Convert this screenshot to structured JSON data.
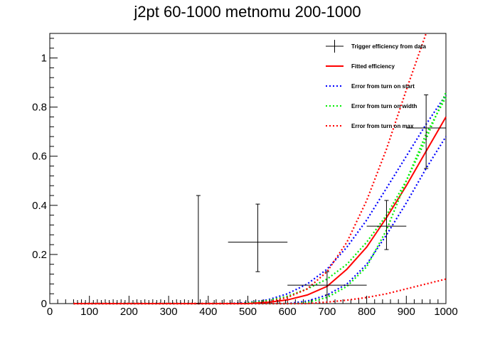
{
  "chart_data": {
    "type": "line",
    "title": "j2pt 60-1000 metnomu 200-1000",
    "xlabel": "",
    "ylabel": "",
    "xlim": [
      0,
      1000
    ],
    "ylim": [
      0,
      1.1
    ],
    "x_ticks": [
      0,
      100,
      200,
      300,
      400,
      500,
      600,
      700,
      800,
      900,
      1000
    ],
    "x_tick_labels": [
      "0",
      "100",
      "200",
      "300",
      "400",
      "500",
      "600",
      "700",
      "800",
      "900",
      "1000"
    ],
    "y_ticks": [
      0,
      0.2,
      0.4,
      0.6,
      0.8,
      1
    ],
    "y_tick_labels": [
      "0",
      "0.2",
      "0.4",
      "0.6",
      "0.8",
      "1"
    ],
    "grid": false,
    "legend_position": "top-right",
    "data_points": [
      {
        "x": 375,
        "y": 0.0,
        "x_err": 0,
        "y_low": 0.0,
        "y_high": 0.44
      },
      {
        "x": 525,
        "y": 0.25,
        "x_err": 75,
        "y_low": 0.13,
        "y_high": 0.405
      },
      {
        "x": 700,
        "y": 0.075,
        "x_err": 100,
        "y_low": 0.035,
        "y_high": 0.13
      },
      {
        "x": 850,
        "y": 0.315,
        "x_err": 50,
        "y_low": 0.22,
        "y_high": 0.42
      },
      {
        "x": 950,
        "y": 0.715,
        "x_err": 50,
        "y_low": 0.55,
        "y_high": 0.85
      }
    ],
    "zero_points_x": [
      70,
      90,
      110,
      130,
      150,
      170,
      190,
      210,
      230,
      250,
      270,
      290,
      310,
      330,
      350,
      395,
      415,
      435,
      455,
      475,
      495,
      515,
      535,
      555,
      575,
      595
    ],
    "series": [
      {
        "name": "Fitted efficiency",
        "color": "#ff0000",
        "style": "solid",
        "x": [
          60,
          500,
          550,
          600,
          650,
          700,
          750,
          800,
          850,
          900,
          950,
          1000
        ],
        "y": [
          0,
          0,
          0.005,
          0.015,
          0.035,
          0.07,
          0.14,
          0.23,
          0.35,
          0.48,
          0.62,
          0.76
        ]
      },
      {
        "name": "Error from turn on start",
        "color": "#0000ff",
        "style": "dotted",
        "x": [
          60,
          450,
          500,
          550,
          600,
          650,
          700,
          750,
          800,
          850,
          900,
          950,
          1000
        ],
        "y": [
          0,
          0,
          0.005,
          0.015,
          0.04,
          0.08,
          0.14,
          0.23,
          0.34,
          0.47,
          0.6,
          0.73,
          0.85
        ]
      },
      {
        "name": "Error from turn on start",
        "color": "#0000ff",
        "style": "dotted",
        "x": [
          60,
          600,
          650,
          700,
          750,
          800,
          850,
          900,
          950,
          1000
        ],
        "y": [
          0,
          0,
          0.01,
          0.035,
          0.08,
          0.16,
          0.28,
          0.41,
          0.55,
          0.68
        ]
      },
      {
        "name": "Error from turn on width",
        "color": "#00ee00",
        "style": "dotted",
        "x": [
          60,
          480,
          550,
          600,
          650,
          700,
          750,
          800,
          850,
          900,
          950,
          1000
        ],
        "y": [
          0,
          0,
          0.012,
          0.03,
          0.06,
          0.1,
          0.16,
          0.25,
          0.36,
          0.5,
          0.67,
          0.86
        ]
      },
      {
        "name": "Error from turn on width",
        "color": "#00ee00",
        "style": "dotted",
        "x": [
          60,
          620,
          650,
          700,
          750,
          800,
          850,
          900,
          950,
          1000
        ],
        "y": [
          0,
          0,
          0.005,
          0.025,
          0.07,
          0.15,
          0.3,
          0.5,
          0.69,
          0.84
        ]
      },
      {
        "name": "Error from turn on max",
        "color": "#ff0000",
        "style": "dotted",
        "x": [
          60,
          500,
          550,
          600,
          650,
          700,
          750,
          800,
          850,
          900,
          950,
          1000
        ],
        "y": [
          0,
          0,
          0.007,
          0.025,
          0.06,
          0.13,
          0.25,
          0.42,
          0.63,
          0.87,
          1.1,
          1.3
        ]
      },
      {
        "name": "Error from turn on max",
        "color": "#ff0000",
        "style": "dotted",
        "x": [
          60,
          650,
          700,
          750,
          800,
          850,
          900,
          950,
          1000
        ],
        "y": [
          0,
          0,
          0.006,
          0.014,
          0.025,
          0.04,
          0.06,
          0.08,
          0.1
        ]
      }
    ],
    "legend": [
      {
        "label": "Trigger efficiency from data",
        "color": "#000000",
        "style": "marker"
      },
      {
        "label": "Fitted efficiency",
        "color": "#ff0000",
        "style": "solid"
      },
      {
        "label": "Error from turn on start",
        "color": "#0000ff",
        "style": "dotted"
      },
      {
        "label": "Error from turn on width",
        "color": "#00ee00",
        "style": "dotted"
      },
      {
        "label": "Error from turn on max",
        "color": "#ff0000",
        "style": "dotted"
      }
    ]
  }
}
